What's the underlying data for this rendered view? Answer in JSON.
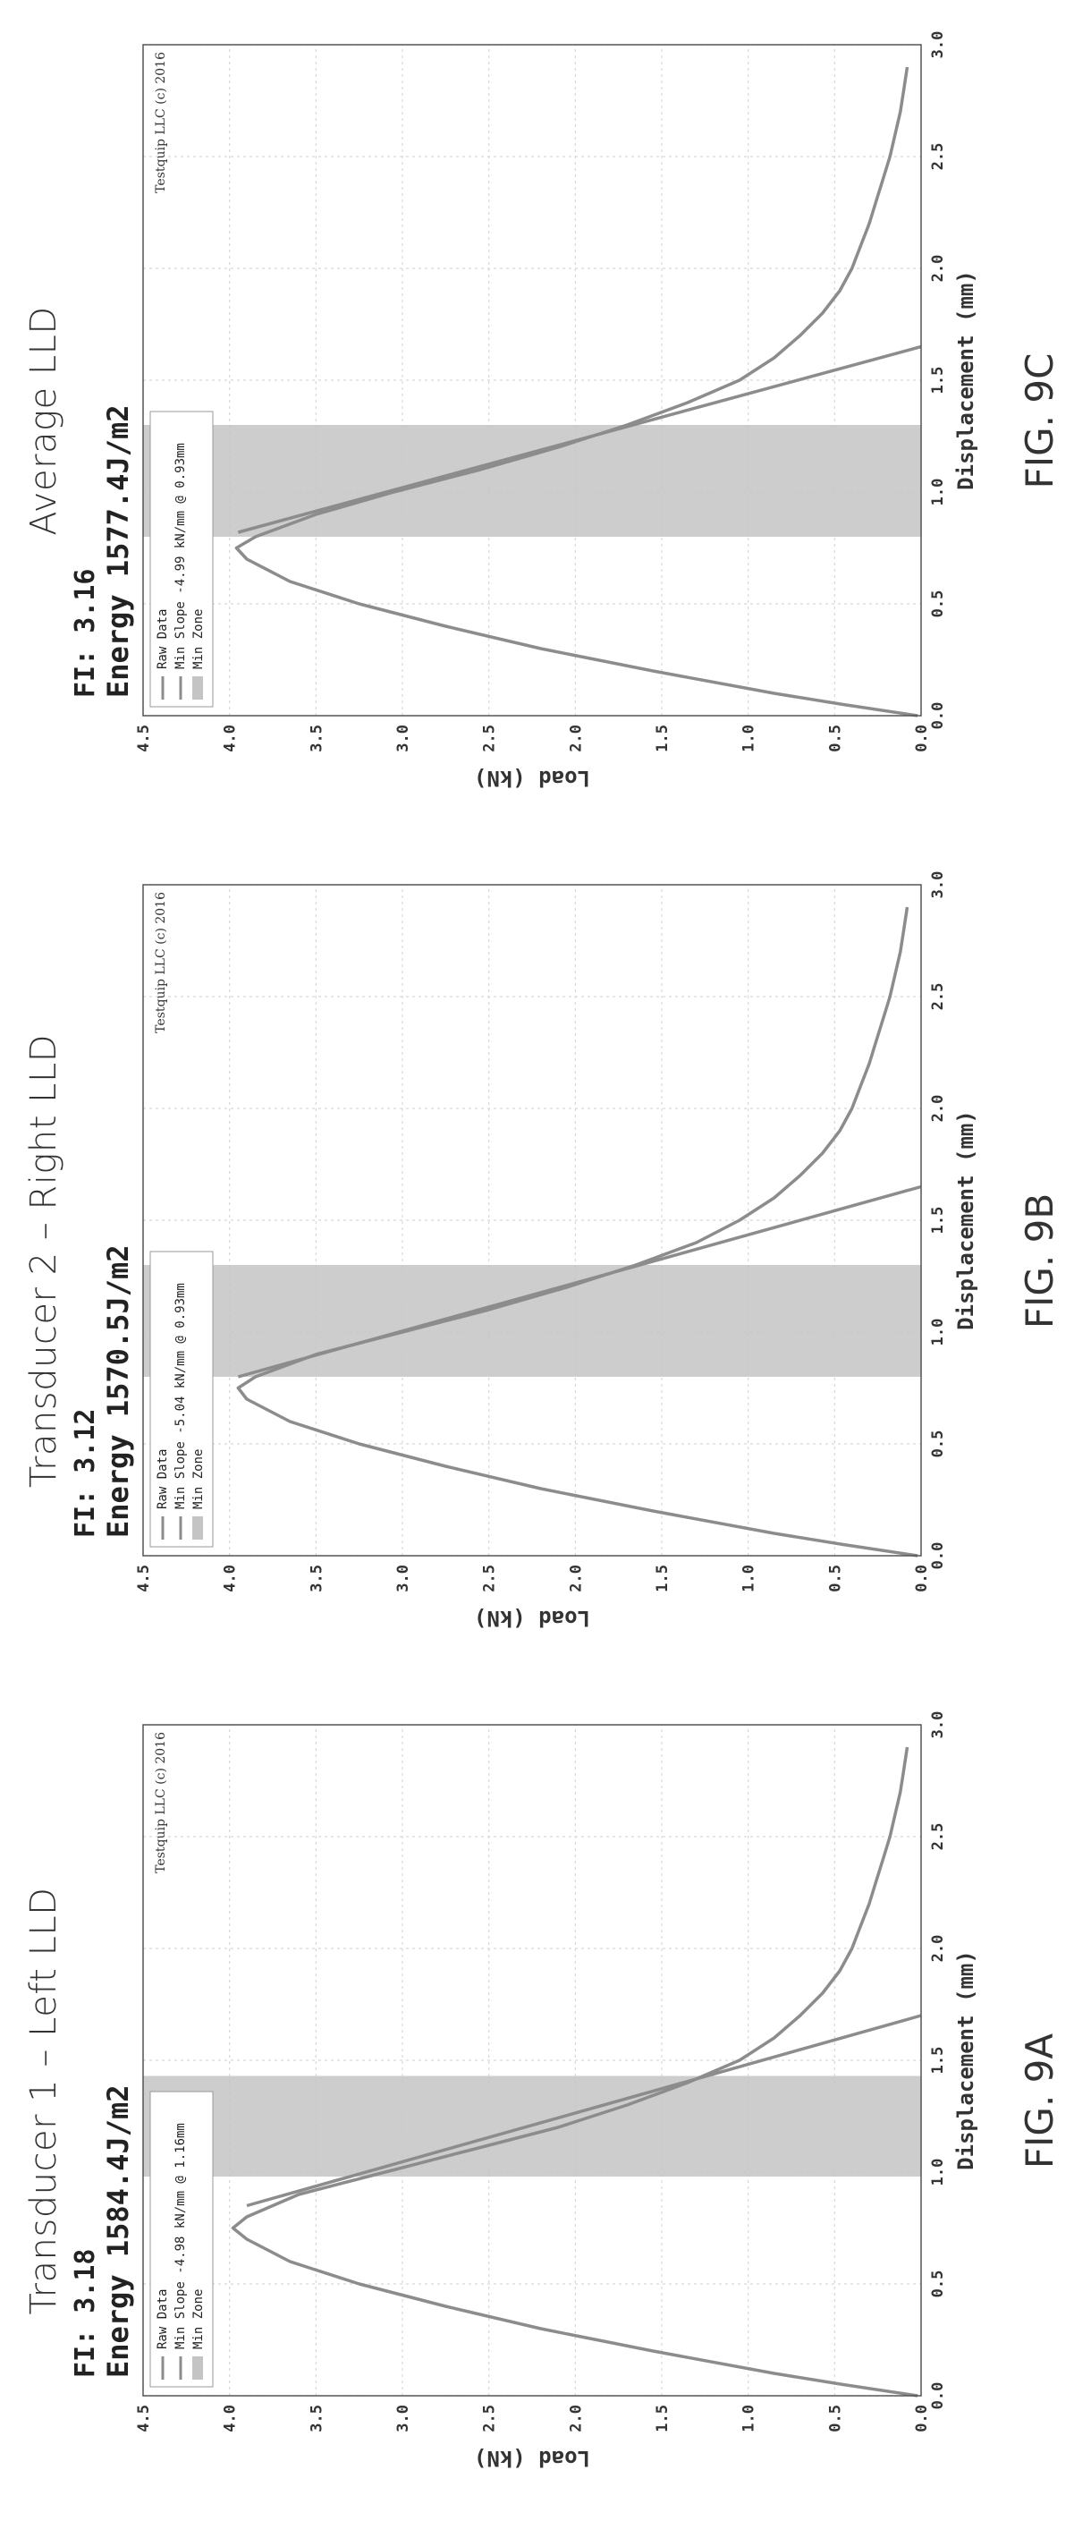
{
  "chart_data": [
    {
      "type": "line",
      "heading": "Transducer 1 – Left LLD",
      "fig_label": "FIG. 9A",
      "fi": "FI: 3.18",
      "energy": "Energy 1584.4J/m2",
      "xlabel": "Displacement (mm)",
      "ylabel": "Load (kN)",
      "xlim": [
        0,
        3.0
      ],
      "ylim": [
        0,
        4.5
      ],
      "xticks": [
        "0.0",
        "0.5",
        "1.0",
        "1.5",
        "2.0",
        "2.5",
        "3.0"
      ],
      "yticks": [
        "0.0",
        "0.5",
        "1.0",
        "1.5",
        "2.0",
        "2.5",
        "3.0",
        "3.5",
        "4.0",
        "4.5"
      ],
      "grid": true,
      "legend_placement": "top-left",
      "legend": [
        "Raw Data",
        "Min Slope -4.98 kN/mm @ 1.16mm",
        "Min Zone"
      ],
      "copyright": "Testquip LLC (c) 2016",
      "series": [
        {
          "name": "Raw Data",
          "x": [
            0,
            0.05,
            0.1,
            0.2,
            0.3,
            0.4,
            0.5,
            0.6,
            0.7,
            0.75,
            0.8,
            0.9,
            1.0,
            1.1,
            1.2,
            1.3,
            1.4,
            1.5,
            1.6,
            1.7,
            1.8,
            1.9,
            2.0,
            2.1,
            2.2,
            2.3,
            2.4,
            2.5,
            2.6,
            2.7,
            2.8,
            2.9
          ],
          "y": [
            0.02,
            0.45,
            0.85,
            1.55,
            2.2,
            2.75,
            3.25,
            3.65,
            3.9,
            3.98,
            3.9,
            3.6,
            3.1,
            2.6,
            2.1,
            1.7,
            1.35,
            1.05,
            0.85,
            0.7,
            0.57,
            0.47,
            0.4,
            0.35,
            0.3,
            0.26,
            0.22,
            0.18,
            0.15,
            0.12,
            0.1,
            0.08
          ]
        },
        {
          "name": "Min Slope -4.98 kN/mm @ 1.16mm",
          "x": [
            0.85,
            1.7
          ],
          "y": [
            3.9,
            0.0
          ]
        }
      ],
      "min_zone": [
        0.98,
        1.43
      ]
    },
    {
      "type": "line",
      "heading": "Transducer 2 –  Right LLD",
      "fig_label": "FIG. 9B",
      "fi": "FI: 3.12",
      "energy": "Energy 1570.5J/m2",
      "xlabel": "Displacement (mm)",
      "ylabel": "Load (kN)",
      "xlim": [
        0,
        3.0
      ],
      "ylim": [
        0,
        4.5
      ],
      "xticks": [
        "0.0",
        "0.5",
        "1.0",
        "1.5",
        "2.0",
        "2.5",
        "3.0"
      ],
      "yticks": [
        "0.0",
        "0.5",
        "1.0",
        "1.5",
        "2.0",
        "2.5",
        "3.0",
        "3.5",
        "4.0",
        "4.5"
      ],
      "grid": true,
      "legend_placement": "top-left",
      "legend": [
        "Raw Data",
        "Min Slope -5.04 kN/mm @ 0.93mm",
        "Min Zone"
      ],
      "copyright": "Testquip LLC (c) 2016",
      "series": [
        {
          "name": "Raw Data",
          "x": [
            0,
            0.05,
            0.1,
            0.2,
            0.3,
            0.4,
            0.5,
            0.6,
            0.7,
            0.75,
            0.8,
            0.9,
            1.0,
            1.1,
            1.2,
            1.3,
            1.4,
            1.5,
            1.6,
            1.7,
            1.8,
            1.9,
            2.0,
            2.1,
            2.2,
            2.3,
            2.4,
            2.5,
            2.6,
            2.7,
            2.8,
            2.9
          ],
          "y": [
            0.02,
            0.45,
            0.85,
            1.55,
            2.2,
            2.75,
            3.25,
            3.65,
            3.9,
            3.95,
            3.85,
            3.5,
            3.0,
            2.5,
            2.05,
            1.65,
            1.3,
            1.05,
            0.85,
            0.7,
            0.57,
            0.47,
            0.4,
            0.35,
            0.3,
            0.26,
            0.22,
            0.18,
            0.15,
            0.12,
            0.1,
            0.08
          ]
        },
        {
          "name": "Min Slope -5.04 kN/mm @ 0.93mm",
          "x": [
            0.8,
            1.65
          ],
          "y": [
            3.95,
            0.0
          ]
        }
      ],
      "min_zone": [
        0.8,
        1.3
      ]
    },
    {
      "type": "line",
      "heading": "Average LLD",
      "fig_label": "FIG. 9C",
      "fi": "FI: 3.16",
      "energy": "Energy 1577.4J/m2",
      "xlabel": "Displacement (mm)",
      "ylabel": "Load (kN)",
      "xlim": [
        0,
        3.0
      ],
      "ylim": [
        0,
        4.5
      ],
      "xticks": [
        "0.0",
        "0.5",
        "1.0",
        "1.5",
        "2.0",
        "2.5",
        "3.0"
      ],
      "yticks": [
        "0.0",
        "0.5",
        "1.0",
        "1.5",
        "2.0",
        "2.5",
        "3.0",
        "3.5",
        "4.0",
        "4.5"
      ],
      "grid": true,
      "legend_placement": "top-left",
      "legend": [
        "Raw Data",
        "Min Slope -4.99 kN/mm @ 0.93mm",
        "Min Zone"
      ],
      "copyright": "Testquip LLC (c) 2016",
      "series": [
        {
          "name": "Raw Data",
          "x": [
            0,
            0.05,
            0.1,
            0.2,
            0.3,
            0.4,
            0.5,
            0.6,
            0.7,
            0.75,
            0.8,
            0.9,
            1.0,
            1.1,
            1.2,
            1.3,
            1.4,
            1.5,
            1.6,
            1.7,
            1.8,
            1.9,
            2.0,
            2.1,
            2.2,
            2.3,
            2.4,
            2.5,
            2.6,
            2.7,
            2.8,
            2.9
          ],
          "y": [
            0.02,
            0.45,
            0.85,
            1.55,
            2.2,
            2.75,
            3.25,
            3.65,
            3.9,
            3.96,
            3.85,
            3.5,
            3.05,
            2.55,
            2.1,
            1.7,
            1.35,
            1.05,
            0.85,
            0.7,
            0.57,
            0.47,
            0.4,
            0.35,
            0.3,
            0.26,
            0.22,
            0.18,
            0.15,
            0.12,
            0.1,
            0.08
          ]
        },
        {
          "name": "Min Slope -4.99 kN/mm @ 0.93mm",
          "x": [
            0.82,
            1.65
          ],
          "y": [
            3.95,
            0.0
          ]
        }
      ],
      "min_zone": [
        0.8,
        1.3
      ]
    }
  ],
  "colors": {
    "curve": "#8c8c8c",
    "zone": "#c4c4c4",
    "grid": "#d8d8d8",
    "axis": "#555555"
  }
}
